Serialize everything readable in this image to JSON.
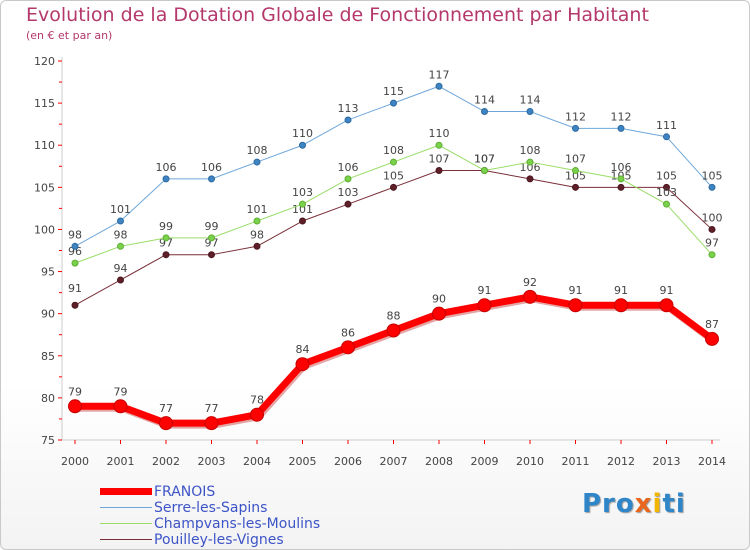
{
  "title": "Evolution de la Dotation Globale de Fonctionnement par Habitant",
  "subtitle": "(en € et par an)",
  "logo": "Proxiti",
  "chart_data": {
    "type": "line",
    "title": "Evolution de la Dotation Globale de Fonctionnement par Habitant",
    "subtitle": "(en € et par an)",
    "xlabel": "",
    "ylabel": "",
    "x": [
      "2000",
      "2001",
      "2002",
      "2003",
      "2004",
      "2005",
      "2006",
      "2007",
      "2008",
      "2009",
      "2010",
      "2011",
      "2012",
      "2013",
      "2014"
    ],
    "ylim": [
      75,
      120
    ],
    "yticks": [
      75,
      80,
      85,
      90,
      95,
      100,
      105,
      110,
      115,
      120
    ],
    "grid": false,
    "legend": "bottom-left",
    "series": [
      {
        "name": "FRANOIS",
        "color": "#ff0000",
        "values": [
          79,
          79,
          77,
          77,
          78,
          84,
          86,
          88,
          90,
          91,
          92,
          91,
          91,
          91,
          87
        ]
      },
      {
        "name": "Serre-les-Sapins",
        "color": "#6fa6d9",
        "values": [
          98,
          101,
          106,
          106,
          108,
          110,
          113,
          115,
          117,
          114,
          114,
          112,
          112,
          111,
          105
        ]
      },
      {
        "name": "Champvans-les-Moulins",
        "color": "#99dd66",
        "values": [
          96,
          98,
          99,
          99,
          101,
          103,
          106,
          108,
          110,
          107,
          108,
          107,
          106,
          103,
          97
        ]
      },
      {
        "name": "Pouilley-les-Vignes",
        "color": "#7a2f38",
        "values": [
          91,
          94,
          97,
          97,
          98,
          101,
          103,
          105,
          107,
          107,
          106,
          105,
          105,
          105,
          100
        ]
      }
    ]
  }
}
